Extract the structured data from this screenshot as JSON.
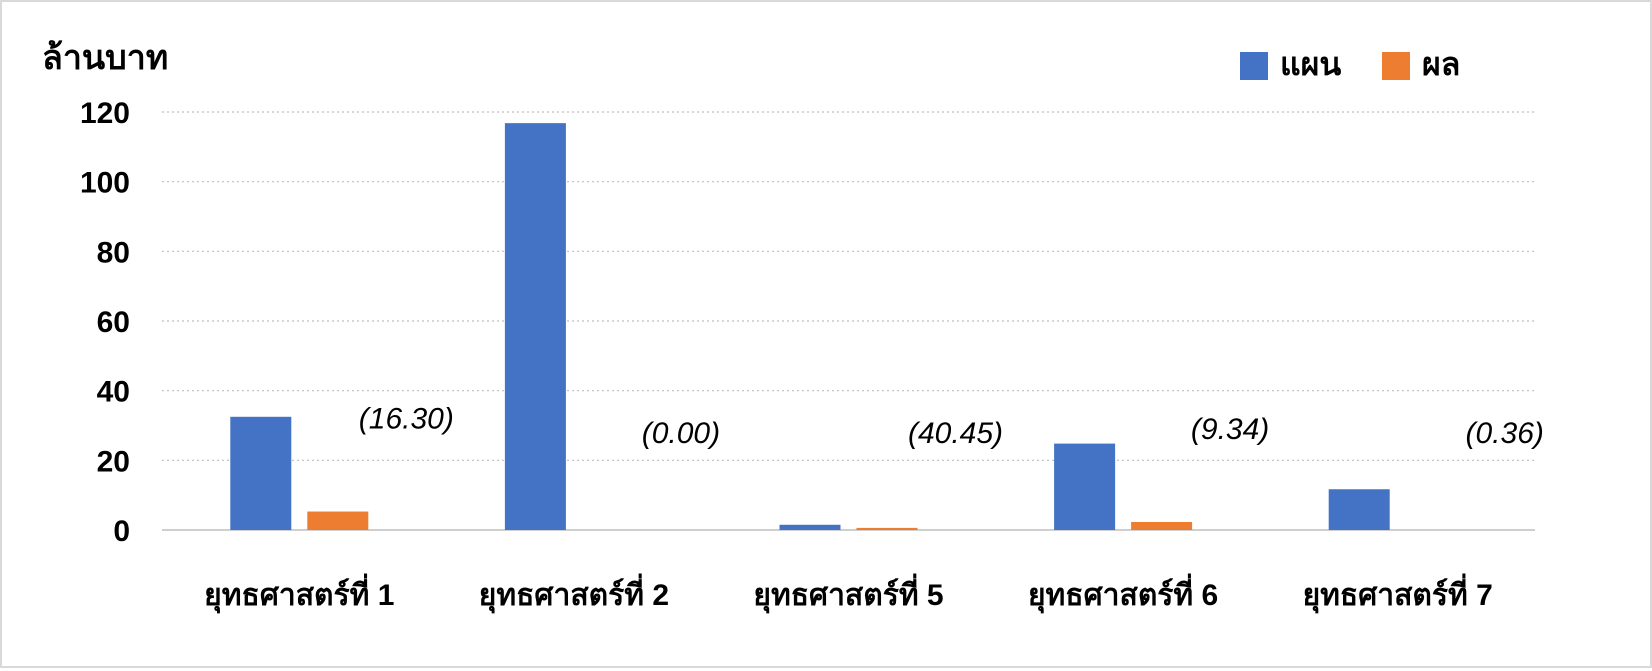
{
  "chart_data": {
    "type": "bar",
    "ylabel": "ล้านบาท",
    "categories": [
      "ยุทธศาสตร์ที่ 1",
      "ยุทธศาสตร์ที่ 2",
      "ยุทธศาสตร์ที่ 5",
      "ยุทธศาสตร์ที่ 6",
      "ยุทธศาสตร์ที่ 7"
    ],
    "series": [
      {
        "name": "แผน",
        "color": "#4472c4",
        "values": [
          32.5,
          116.8,
          1.5,
          24.8,
          11.7
        ]
      },
      {
        "name": "ผล",
        "color": "#ed7d31",
        "values": [
          5.3,
          0.0,
          0.6,
          2.3,
          0.0
        ]
      }
    ],
    "data_labels": [
      "(16.30)",
      "(0.00)",
      "(40.45)",
      "(9.34)",
      "(0.36)"
    ],
    "ylim": [
      0,
      120
    ],
    "yticks": [
      0,
      20,
      40,
      60,
      80,
      100,
      120
    ],
    "grid": true,
    "legend_position": "top-right"
  }
}
